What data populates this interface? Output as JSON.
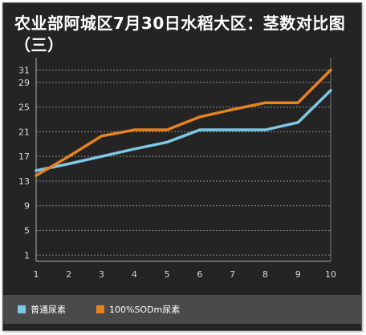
{
  "chart_data": {
    "type": "line",
    "title": "农业部阿城区7月30日水稻大区：茎数对比图（三）",
    "x": [
      1,
      2,
      3,
      4,
      5,
      6,
      7,
      8,
      9,
      10
    ],
    "y_ticks": [
      1,
      5,
      9,
      13,
      17,
      21,
      25,
      29,
      31
    ],
    "ylim": [
      0,
      33
    ],
    "xlim": [
      1,
      10
    ],
    "grid": true,
    "legend_position": "bottom",
    "series": [
      {
        "name": "普通尿素",
        "color": "#7ec8e3",
        "values": [
          14.7,
          15.8,
          17.0,
          18.2,
          19.3,
          21.3,
          21.3,
          21.3,
          22.5,
          27.7
        ]
      },
      {
        "name": "100%SODm尿素",
        "color": "#e8821e",
        "values": [
          13.9,
          17.0,
          20.3,
          21.3,
          21.3,
          23.4,
          24.6,
          25.7,
          25.7,
          31.0
        ]
      }
    ]
  }
}
